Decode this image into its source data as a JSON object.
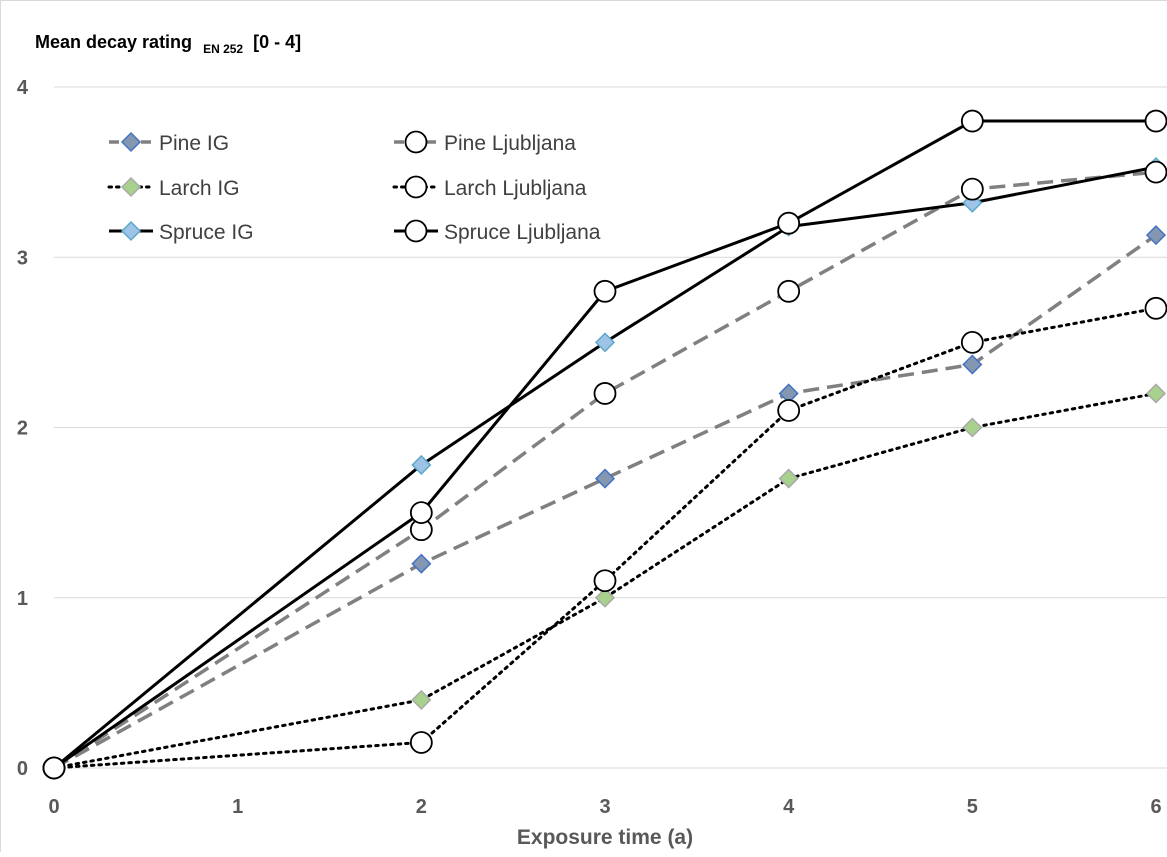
{
  "chart_data": {
    "type": "line",
    "title": "",
    "ylabel": {
      "main": "Mean decay rating",
      "sub": "EN 252",
      "range": "[0 - 4]"
    },
    "xlabel": "Exposure time (a)",
    "x": [
      0,
      2,
      3,
      4,
      5,
      6
    ],
    "xticks": [
      "0",
      "1",
      "2",
      "3",
      "4",
      "5",
      "6"
    ],
    "yticks": [
      "0",
      "1",
      "2",
      "3",
      "4"
    ],
    "xlim": [
      0,
      6
    ],
    "ylim": [
      0,
      4
    ],
    "grid": "horizontal",
    "legend_position": "top-left",
    "series": [
      {
        "name": "Pine IG",
        "values": [
          0,
          1.2,
          1.7,
          2.2,
          2.37,
          3.13
        ],
        "line": "dashed",
        "color": "#808080",
        "marker": "diamond",
        "marker_fill": "#8497B0",
        "marker_edge": "#4472C4"
      },
      {
        "name": "Pine Ljubljana",
        "values": [
          0,
          1.4,
          2.2,
          2.8,
          3.4,
          3.5
        ],
        "line": "dashed",
        "color": "#808080",
        "marker": "circle",
        "marker_fill": "#ffffff",
        "marker_edge": "#000000"
      },
      {
        "name": "Larch IG",
        "values": [
          0,
          0.4,
          1.0,
          1.7,
          2.0,
          2.2
        ],
        "line": "dotted",
        "color": "#000000",
        "marker": "diamond",
        "marker_fill": "#A9D18E",
        "marker_edge": "#A9A9A9"
      },
      {
        "name": "Larch Ljubljana",
        "values": [
          0,
          0.15,
          1.1,
          2.1,
          2.5,
          2.7
        ],
        "line": "dotted",
        "color": "#000000",
        "marker": "circle",
        "marker_fill": "#ffffff",
        "marker_edge": "#000000"
      },
      {
        "name": "Spruce IG",
        "values": [
          0,
          1.78,
          2.5,
          3.18,
          3.32,
          3.53
        ],
        "line": "solid",
        "color": "#000000",
        "marker": "diamond",
        "marker_fill": "#9DC3E6",
        "marker_edge": "#5BA8C9"
      },
      {
        "name": "Spruce Ljubljana",
        "values": [
          0,
          1.5,
          2.8,
          3.2,
          3.8,
          3.8
        ],
        "line": "solid",
        "color": "#000000",
        "marker": "circle",
        "marker_fill": "#ffffff",
        "marker_edge": "#000000"
      }
    ]
  }
}
